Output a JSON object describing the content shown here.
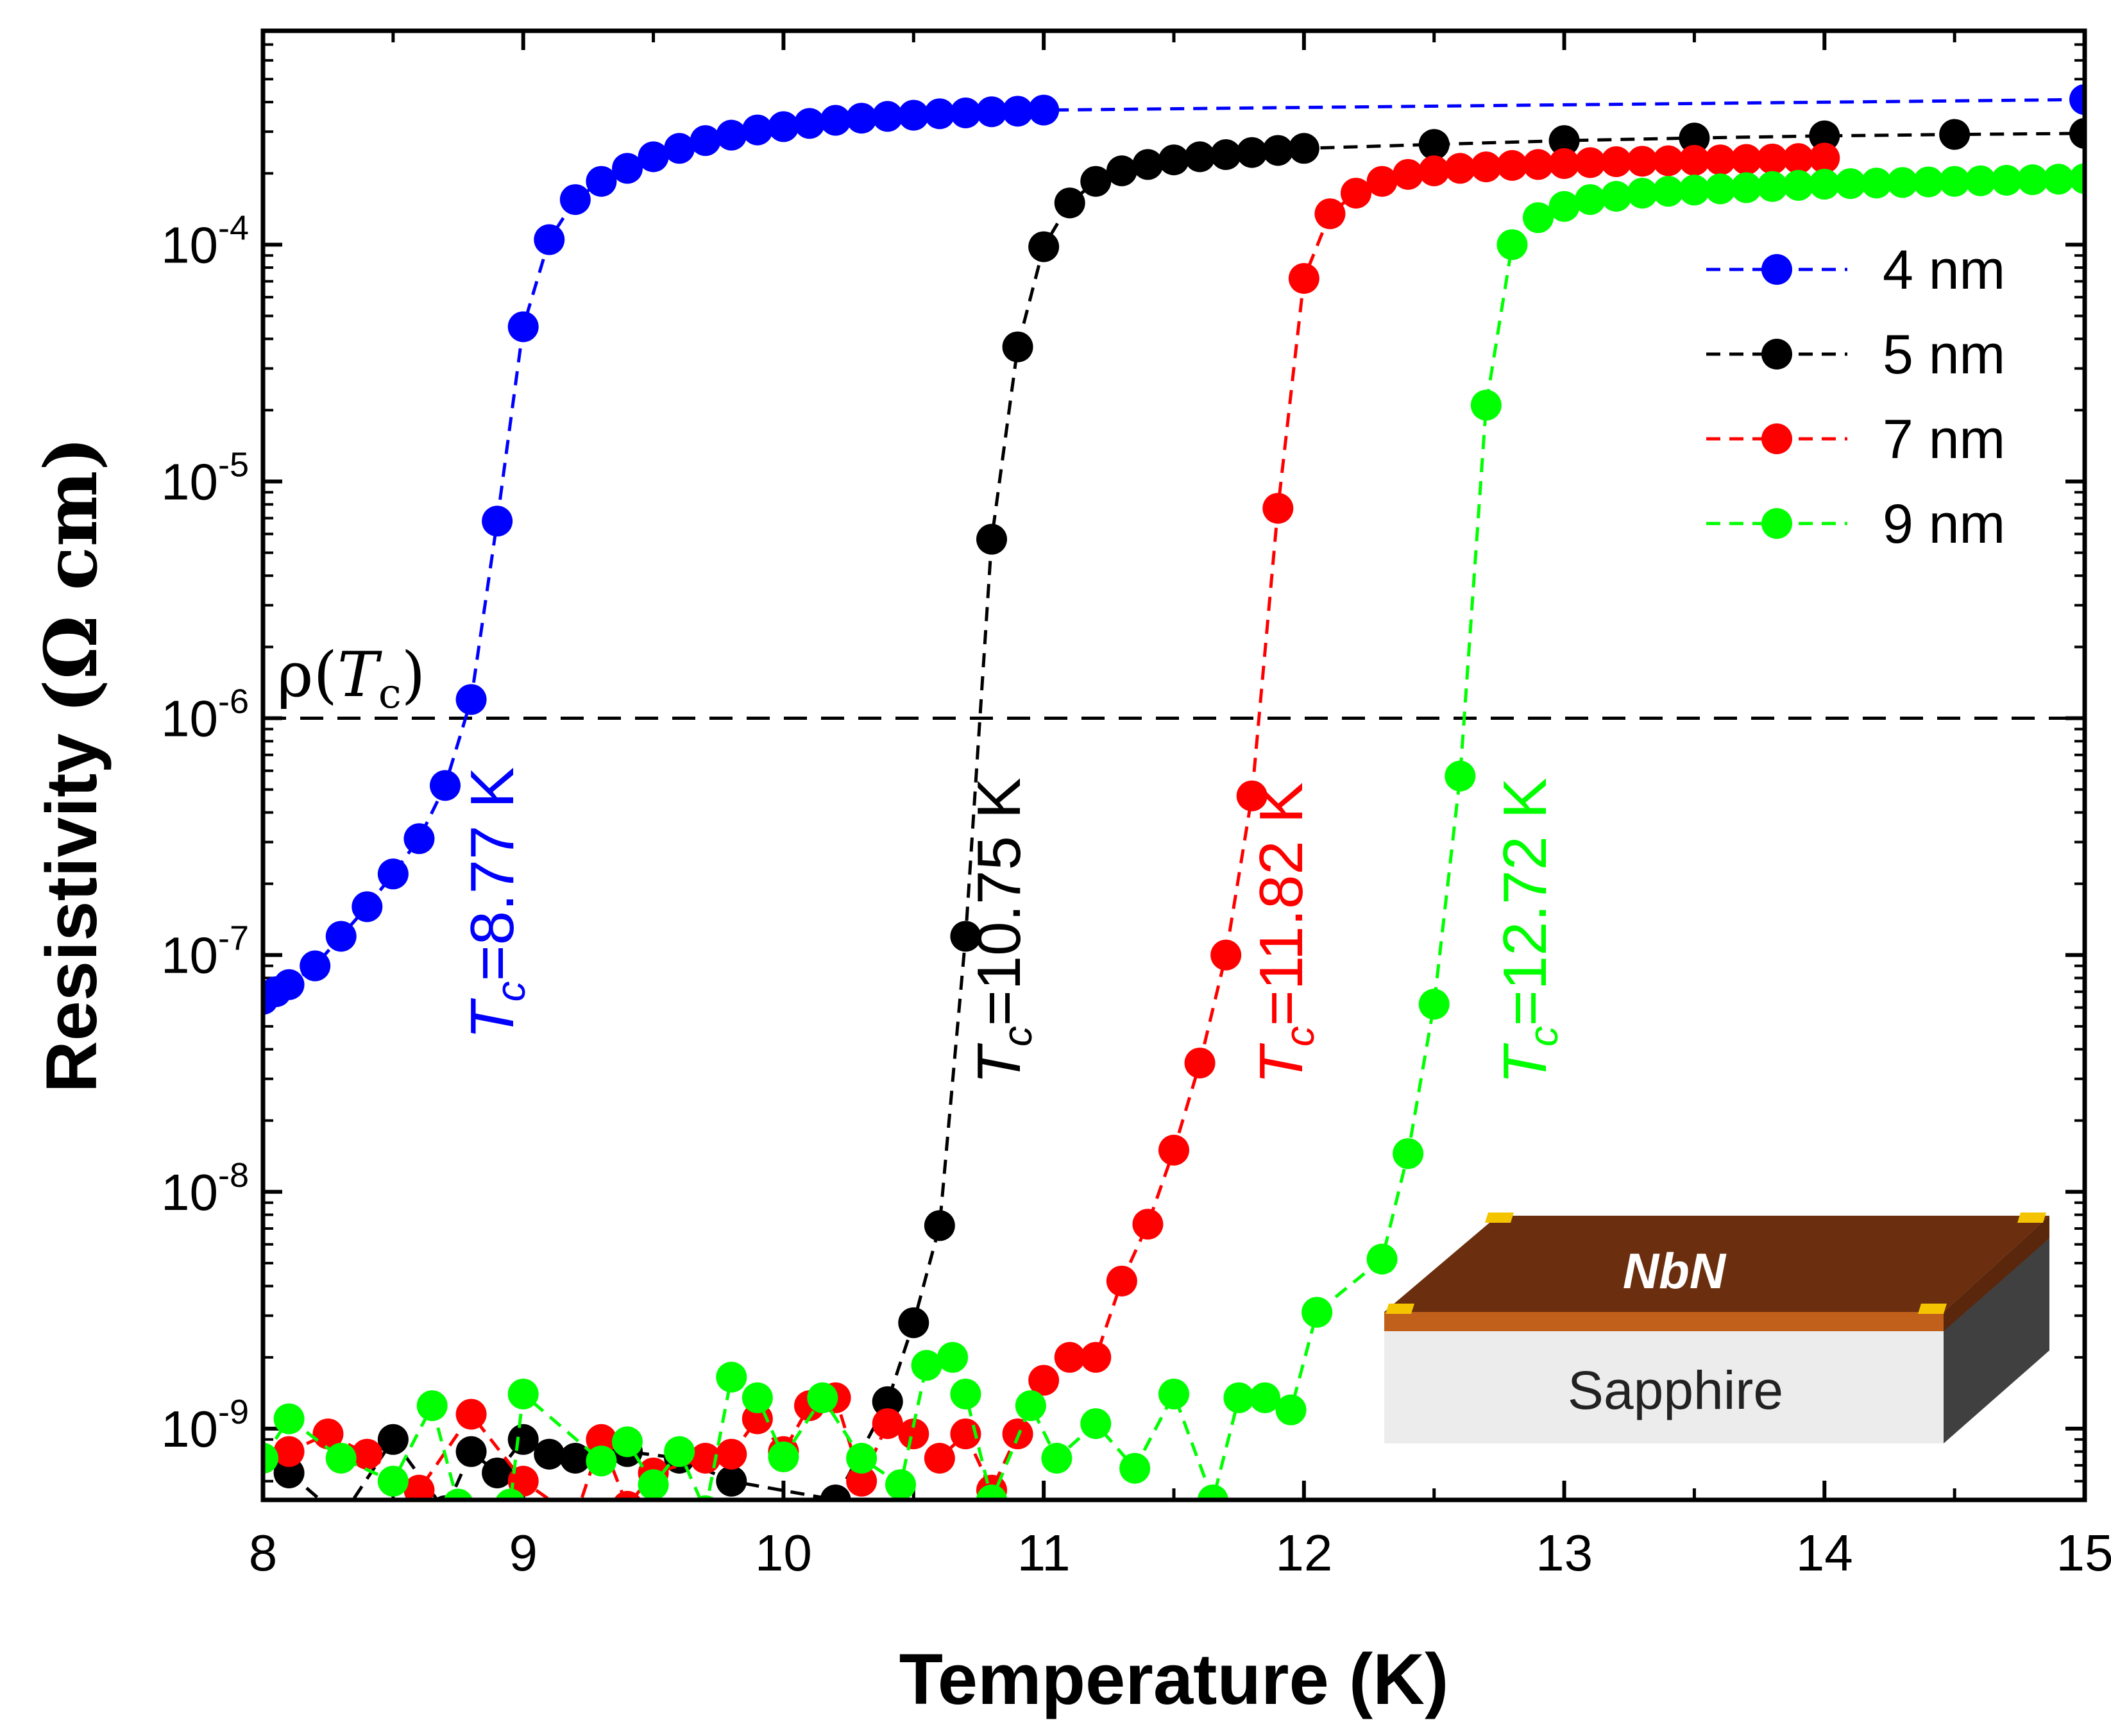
{
  "chart_data": {
    "type": "scatter",
    "title": "",
    "xlabel": "Temperature (K)",
    "ylabel": {
      "text": "Resistivity",
      "unit": "(Ω cm)"
    },
    "xlim": [
      8,
      15
    ],
    "ylim": [
      5e-10,
      0.0008
    ],
    "yscale": "log",
    "x_ticks": [
      8,
      9,
      10,
      11,
      12,
      13,
      14,
      15
    ],
    "y_ticks": [
      {
        "value": 1e-09,
        "base": "10",
        "exp": "-9"
      },
      {
        "value": 1e-08,
        "base": "10",
        "exp": "-8"
      },
      {
        "value": 1e-07,
        "base": "10",
        "exp": "-7"
      },
      {
        "value": 1e-06,
        "base": "10",
        "exp": "-6"
      },
      {
        "value": 1e-05,
        "base": "10",
        "exp": "-5"
      },
      {
        "value": 0.0001,
        "base": "10",
        "exp": "-4"
      }
    ],
    "legend": {
      "position": "top-right"
    },
    "reference_line": {
      "value": 1e-06,
      "label_symbol": "ρ",
      "label_var": "T",
      "label_sub": "c"
    },
    "series": [
      {
        "name": "4 nm",
        "color": "#0000ff",
        "tc_label": {
          "symbol": "T",
          "sub": "c",
          "value": "=8.77 K"
        },
        "x": [
          8.0,
          8.05,
          8.1,
          8.2,
          8.3,
          8.4,
          8.5,
          8.6,
          8.7,
          8.8,
          8.9,
          9.0,
          9.1,
          9.2,
          9.3,
          9.4,
          9.5,
          9.6,
          9.7,
          9.8,
          9.9,
          10.0,
          10.1,
          10.2,
          10.3,
          10.4,
          10.5,
          10.6,
          10.7,
          10.8,
          10.9,
          11.0,
          15.0
        ],
        "y": [
          6.5e-08,
          7e-08,
          7.5e-08,
          9e-08,
          1.2e-07,
          1.6e-07,
          2.2e-07,
          3.1e-07,
          5.2e-07,
          1.2e-06,
          6.8e-06,
          4.5e-05,
          0.000105,
          0.000155,
          0.000185,
          0.00021,
          0.000235,
          0.000255,
          0.000275,
          0.00029,
          0.000305,
          0.000315,
          0.000325,
          0.000335,
          0.000342,
          0.000348,
          0.000352,
          0.000357,
          0.00036,
          0.000364,
          0.000366,
          0.00037,
          0.00041
        ]
      },
      {
        "name": "5 nm",
        "color": "#000000",
        "tc_label": {
          "symbol": "T",
          "sub": "c",
          "value": "=10.75 K"
        },
        "x": [
          8.1,
          8.3,
          8.5,
          8.7,
          8.8,
          8.9,
          9.0,
          9.1,
          9.2,
          9.4,
          9.6,
          9.8,
          10.2,
          10.4,
          10.5,
          10.6,
          10.7,
          10.8,
          10.9,
          11.0,
          11.1,
          11.2,
          11.3,
          11.4,
          11.5,
          11.6,
          11.7,
          11.8,
          11.9,
          12.0,
          12.5,
          13.0,
          13.5,
          14.0,
          14.5,
          15.0
        ],
        "y": [
          6.5e-10,
          4.2e-10,
          9e-10,
          4.5e-10,
          8e-10,
          6.5e-10,
          9e-10,
          7.8e-10,
          7.5e-10,
          8e-10,
          7.5e-10,
          6e-10,
          5e-10,
          1.3e-09,
          2.8e-09,
          7.2e-09,
          1.2e-07,
          5.7e-06,
          3.7e-05,
          9.8e-05,
          0.00015,
          0.000185,
          0.000205,
          0.000218,
          0.000228,
          0.000235,
          0.00024,
          0.000245,
          0.00025,
          0.000255,
          0.000265,
          0.000275,
          0.000282,
          0.000288,
          0.000292,
          0.000295
        ]
      },
      {
        "name": "7 nm",
        "color": "#ff0000",
        "tc_label": {
          "symbol": "T",
          "sub": "c",
          "value": "=11.82 K"
        },
        "x": [
          8.0,
          8.1,
          8.25,
          8.4,
          8.6,
          8.8,
          9.0,
          9.2,
          9.3,
          9.4,
          9.5,
          9.7,
          9.8,
          9.9,
          10.0,
          10.1,
          10.2,
          10.3,
          10.4,
          10.5,
          10.6,
          10.7,
          10.8,
          10.9,
          11.0,
          11.1,
          11.2,
          11.3,
          11.4,
          11.5,
          11.6,
          11.7,
          11.8,
          11.9,
          12.0,
          12.1,
          12.2,
          12.3,
          12.4,
          12.5,
          12.6,
          12.7,
          12.8,
          12.9,
          13.0,
          13.1,
          13.2,
          13.3,
          13.4,
          13.5,
          13.6,
          13.7,
          13.8,
          13.9,
          14.0
        ],
        "y": [
          7.5e-10,
          8e-10,
          9.5e-10,
          7.8e-10,
          5.5e-10,
          1.15e-09,
          6e-10,
          4.2e-10,
          9e-10,
          4.7e-10,
          6.5e-10,
          7.5e-10,
          7.8e-10,
          1.1e-09,
          8e-10,
          1.25e-09,
          1.35e-09,
          6e-10,
          1.05e-09,
          9.5e-10,
          7.5e-10,
          9.5e-10,
          5.5e-10,
          9.5e-10,
          1.6e-09,
          2e-09,
          2e-09,
          4.2e-09,
          7.3e-09,
          1.5e-08,
          3.5e-08,
          1e-07,
          4.7e-07,
          7.7e-06,
          7.2e-05,
          0.000135,
          0.000165,
          0.000185,
          0.000198,
          0.000205,
          0.00021,
          0.000213,
          0.000216,
          0.000218,
          0.00022,
          0.000222,
          0.000224,
          0.000225,
          0.000226,
          0.000227,
          0.000228,
          0.000229,
          0.00023,
          0.000231,
          0.000232
        ]
      },
      {
        "name": "9 nm",
        "color": "#00ff00",
        "tc_label": {
          "symbol": "T",
          "sub": "c",
          "value": "=12.72 K"
        },
        "x": [
          8.0,
          8.1,
          8.3,
          8.5,
          8.65,
          8.75,
          8.95,
          9.0,
          9.3,
          9.4,
          9.5,
          9.6,
          9.7,
          9.8,
          9.9,
          10.0,
          10.15,
          10.3,
          10.45,
          10.55,
          10.65,
          10.7,
          10.8,
          10.95,
          11.05,
          11.2,
          11.35,
          11.5,
          11.65,
          11.75,
          11.85,
          11.95,
          12.05,
          12.3,
          12.4,
          12.5,
          12.6,
          12.7,
          12.8,
          12.9,
          13.0,
          13.1,
          13.2,
          13.3,
          13.4,
          13.5,
          13.6,
          13.7,
          13.8,
          13.9,
          14.0,
          14.1,
          14.2,
          14.3,
          14.4,
          14.5,
          14.6,
          14.7,
          14.8,
          14.9,
          15.0
        ],
        "y": [
          7.5e-10,
          1.1e-09,
          7.5e-10,
          6e-10,
          1.25e-09,
          4.8e-10,
          4.8e-10,
          1.4e-09,
          7.3e-10,
          8.8e-10,
          5.8e-10,
          8e-10,
          4.5e-10,
          1.65e-09,
          1.35e-09,
          7.6e-10,
          1.35e-09,
          7.5e-10,
          5.8e-10,
          1.85e-09,
          2e-09,
          1.4e-09,
          5e-10,
          1.25e-09,
          7.5e-10,
          1.05e-09,
          6.8e-10,
          1.4e-09,
          5e-10,
          1.35e-09,
          1.35e-09,
          1.2e-09,
          3.1e-09,
          5.2e-09,
          1.45e-08,
          6.2e-08,
          5.7e-07,
          2.1e-05,
          0.0001,
          0.00013,
          0.000145,
          0.000155,
          0.00016,
          0.000165,
          0.000168,
          0.00017,
          0.000172,
          0.000174,
          0.000176,
          0.000178,
          0.00018,
          0.000181,
          0.000182,
          0.000183,
          0.000184,
          0.000185,
          0.000186,
          0.000187,
          0.000188,
          0.000189,
          0.00019
        ]
      }
    ]
  },
  "inset": {
    "film_label": "NbN",
    "substrate_label": "Sapphire",
    "colors": {
      "film_top": "#6b2e0e",
      "film_edge": "#c0601a",
      "contacts": "#f5c400",
      "substrate_front": "#ececec",
      "substrate_side": "#404040"
    }
  }
}
